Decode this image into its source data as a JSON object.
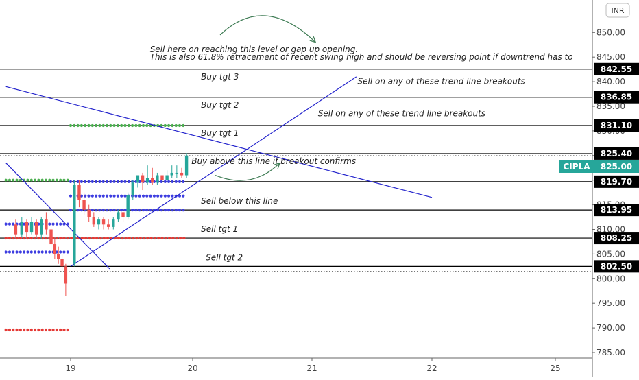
{
  "currency": "INR",
  "ticker": "CIPLA",
  "last_price_label": "825.00",
  "colors": {
    "up": "#26a69a",
    "down": "#ef5350",
    "dot_green": "#4caf50",
    "dot_blue": "#3d3de0",
    "dot_red": "#e53935",
    "trend": "#2222cc",
    "curve": "#3c7a52",
    "level": "#000000",
    "label_bg": "#000000",
    "price_tag": "#26a69a",
    "grid_text": "#444444"
  },
  "chart_data": {
    "type": "candlestick",
    "y_ticks": [
      "850.00",
      "845.00",
      "840.00",
      "835.00",
      "830.00",
      "825.00",
      "820.00",
      "815.00",
      "810.00",
      "805.00",
      "800.00",
      "795.00",
      "790.00",
      "785.00"
    ],
    "x_ticks": [
      "19",
      "20",
      "21",
      "22",
      "25"
    ],
    "candles": [
      {
        "x": 18.55,
        "o": 811.0,
        "h": 812.0,
        "c": 809.0,
        "l": 808.0
      },
      {
        "x": 18.6,
        "o": 809.0,
        "h": 812.5,
        "c": 811.5,
        "l": 808.5
      },
      {
        "x": 18.64,
        "o": 811.5,
        "h": 812.0,
        "c": 809.5,
        "l": 808.0
      },
      {
        "x": 18.68,
        "o": 809.5,
        "h": 812.5,
        "c": 811.5,
        "l": 809.0
      },
      {
        "x": 18.72,
        "o": 811.5,
        "h": 812.0,
        "c": 809.0,
        "l": 808.5
      },
      {
        "x": 18.76,
        "o": 809.0,
        "h": 812.5,
        "c": 812.0,
        "l": 808.0
      },
      {
        "x": 18.8,
        "o": 812.0,
        "h": 813.5,
        "c": 810.0,
        "l": 809.0
      },
      {
        "x": 18.84,
        "o": 810.0,
        "h": 812.0,
        "c": 807.0,
        "l": 805.5
      },
      {
        "x": 18.87,
        "o": 807.0,
        "h": 808.0,
        "c": 805.0,
        "l": 804.0
      },
      {
        "x": 18.9,
        "o": 805.0,
        "h": 806.5,
        "c": 804.0,
        "l": 803.0
      },
      {
        "x": 18.93,
        "o": 804.0,
        "h": 805.0,
        "c": 802.5,
        "l": 801.5
      },
      {
        "x": 18.96,
        "o": 802.5,
        "h": 803.0,
        "c": 799.0,
        "l": 796.5
      },
      {
        "x": 19.03,
        "o": 803.0,
        "h": 820.0,
        "c": 819.0,
        "l": 802.5
      },
      {
        "x": 19.07,
        "o": 819.0,
        "h": 820.0,
        "c": 816.0,
        "l": 814.5
      },
      {
        "x": 19.11,
        "o": 816.0,
        "h": 817.5,
        "c": 814.0,
        "l": 813.0
      },
      {
        "x": 19.15,
        "o": 814.0,
        "h": 815.0,
        "c": 812.5,
        "l": 811.5
      },
      {
        "x": 19.19,
        "o": 812.5,
        "h": 813.5,
        "c": 811.0,
        "l": 810.5
      },
      {
        "x": 19.23,
        "o": 811.0,
        "h": 812.5,
        "c": 812.0,
        "l": 810.0
      },
      {
        "x": 19.27,
        "o": 812.0,
        "h": 812.5,
        "c": 811.0,
        "l": 810.0
      },
      {
        "x": 19.31,
        "o": 811.0,
        "h": 812.0,
        "c": 810.5,
        "l": 810.0
      },
      {
        "x": 19.35,
        "o": 810.5,
        "h": 812.5,
        "c": 812.0,
        "l": 810.0
      },
      {
        "x": 19.39,
        "o": 812.0,
        "h": 814.0,
        "c": 813.5,
        "l": 811.5
      },
      {
        "x": 19.43,
        "o": 813.5,
        "h": 814.0,
        "c": 812.5,
        "l": 811.5
      },
      {
        "x": 19.47,
        "o": 812.5,
        "h": 817.5,
        "c": 817.0,
        "l": 812.0
      },
      {
        "x": 19.51,
        "o": 817.0,
        "h": 820.0,
        "c": 819.5,
        "l": 816.0
      },
      {
        "x": 19.55,
        "o": 819.5,
        "h": 821.0,
        "c": 821.0,
        "l": 818.5
      },
      {
        "x": 19.59,
        "o": 821.0,
        "h": 821.5,
        "c": 819.5,
        "l": 818.0
      },
      {
        "x": 19.63,
        "o": 819.5,
        "h": 823.0,
        "c": 820.5,
        "l": 819.0
      },
      {
        "x": 19.67,
        "o": 820.5,
        "h": 822.5,
        "c": 819.5,
        "l": 819.0
      },
      {
        "x": 19.71,
        "o": 819.5,
        "h": 821.5,
        "c": 821.0,
        "l": 819.0
      },
      {
        "x": 19.75,
        "o": 821.0,
        "h": 822.0,
        "c": 820.0,
        "l": 819.0
      },
      {
        "x": 19.79,
        "o": 820.0,
        "h": 822.0,
        "c": 821.0,
        "l": 819.5
      },
      {
        "x": 19.83,
        "o": 821.0,
        "h": 823.0,
        "c": 821.5,
        "l": 820.5
      },
      {
        "x": 19.87,
        "o": 821.5,
        "h": 823.0,
        "c": 821.5,
        "l": 820.5
      },
      {
        "x": 19.91,
        "o": 821.5,
        "h": 822.5,
        "c": 821.0,
        "l": 820.5
      },
      {
        "x": 19.95,
        "o": 821.0,
        "h": 825.5,
        "c": 825.0,
        "l": 820.5
      }
    ],
    "levels": [
      {
        "price": 842.55,
        "label": "842.55",
        "width": 1.2,
        "dotted": false
      },
      {
        "price": 836.85,
        "label": "836.85",
        "width": 1.2,
        "dotted": false
      },
      {
        "price": 831.1,
        "label": "831.10",
        "width": 1.2,
        "dotted": false
      },
      {
        "price": 825.4,
        "label": "825.40",
        "width": 1.0,
        "dotted": false
      },
      {
        "price": 819.7,
        "label": "819.70",
        "width": 1.2,
        "dotted": false
      },
      {
        "price": 813.95,
        "label": "813.95",
        "width": 1.2,
        "dotted": false
      },
      {
        "price": 808.25,
        "label": "808.25",
        "width": 1.2,
        "dotted": false
      },
      {
        "price": 802.5,
        "label": "802.50",
        "width": 1.2,
        "dotted": false
      }
    ],
    "dotted_guides": [
      825.0,
      801.5
    ],
    "dot_rows": [
      {
        "color_key": "dot_green",
        "price": 831.1,
        "x_from": 19.0,
        "x_to": 19.95
      },
      {
        "color_key": "dot_green",
        "price": 820.0,
        "x_from": 18.47,
        "x_to": 18.98
      },
      {
        "color_key": "dot_blue",
        "price": 819.7,
        "x_from": 19.0,
        "x_to": 19.95
      },
      {
        "color_key": "dot_blue",
        "price": 816.8,
        "x_from": 19.0,
        "x_to": 19.95
      },
      {
        "color_key": "dot_blue",
        "price": 813.95,
        "x_from": 19.0,
        "x_to": 19.95
      },
      {
        "color_key": "dot_blue",
        "price": 811.1,
        "x_from": 18.47,
        "x_to": 18.98
      },
      {
        "color_key": "dot_red",
        "price": 808.25,
        "x_from": 18.47,
        "x_to": 19.95
      },
      {
        "color_key": "dot_blue",
        "price": 805.4,
        "x_from": 18.47,
        "x_to": 18.98
      },
      {
        "color_key": "dot_red",
        "price": 789.6,
        "x_from": 18.47,
        "x_to": 18.98
      }
    ],
    "trend_lines": [
      {
        "x1": 18.47,
        "y1": 839.0,
        "x2": 22.0,
        "y2": 816.5
      },
      {
        "x1": 19.0,
        "y1": 802.5,
        "x2": 21.37,
        "y2": 841.0
      },
      {
        "x1": 18.47,
        "y1": 823.5,
        "x2": 19.32,
        "y2": 802.0
      }
    ],
    "annotations": [
      {
        "id": "sell-here",
        "text": "Sell here on reaching this level or gap up opening.",
        "x": 19.65,
        "y": 846.0
      },
      {
        "id": "retracement",
        "text": "This is also 61.8% retracement of recent swing high and should be reversing point if downtrend has to",
        "x": 19.65,
        "y": 844.5
      },
      {
        "id": "buy-tgt-3",
        "text": "Buy tgt 3",
        "x": 20.07,
        "y": 840.4
      },
      {
        "id": "sell-trend-1",
        "text": "Sell on any of these trend line breakouts",
        "x": 21.38,
        "y": 839.5
      },
      {
        "id": "buy-tgt-2",
        "text": "Buy tgt 2",
        "x": 20.07,
        "y": 834.7
      },
      {
        "id": "sell-trend-2",
        "text": "Sell on any of these trend line breakouts",
        "x": 21.05,
        "y": 833.0
      },
      {
        "id": "buy-tgt-1",
        "text": "Buy tgt 1",
        "x": 20.07,
        "y": 829.0
      },
      {
        "id": "buy-above",
        "text": "Buy above this line if breakout confirms",
        "x": 19.99,
        "y": 823.3
      },
      {
        "id": "sell-below",
        "text": "Sell below this line",
        "x": 20.07,
        "y": 815.2
      },
      {
        "id": "sell-tgt-1",
        "text": "Sell tgt 1",
        "x": 20.07,
        "y": 809.5
      },
      {
        "id": "sell-tgt-2",
        "text": "Sell tgt 2",
        "x": 20.11,
        "y": 803.7
      }
    ],
    "curved_arrows": [
      {
        "x1": 20.23,
        "y1": 849.5,
        "cx": 20.6,
        "cy": 858.0,
        "x2": 21.03,
        "y2": 848.0
      },
      {
        "x1": 20.19,
        "y1": 821.0,
        "cx": 20.5,
        "cy": 818.0,
        "x2": 20.73,
        "y2": 823.5
      }
    ]
  }
}
